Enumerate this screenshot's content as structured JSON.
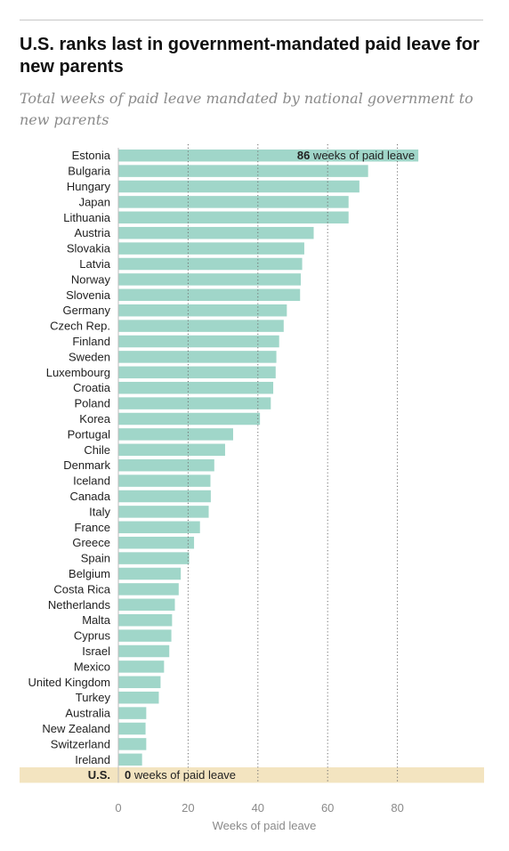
{
  "title": "U.S. ranks last in government-mandated paid leave for new parents",
  "subtitle": "Total weeks of paid leave mandated by national government to new parents",
  "chart_data": {
    "type": "bar",
    "orientation": "horizontal",
    "title": "U.S. ranks last in government-mandated paid leave for new parents",
    "subtitle": "Total weeks of paid leave mandated by national government to new parents",
    "xlabel": "Weeks of paid leave",
    "ylabel": "",
    "xlim": [
      0,
      104
    ],
    "xticks": [
      0,
      20,
      40,
      60,
      80
    ],
    "grid": true,
    "categories": [
      "Estonia",
      "Bulgaria",
      "Hungary",
      "Japan",
      "Lithuania",
      "Austria",
      "Slovakia",
      "Latvia",
      "Norway",
      "Slovenia",
      "Germany",
      "Czech Rep.",
      "Finland",
      "Sweden",
      "Luxembourg",
      "Croatia",
      "Poland",
      "Korea",
      "Portugal",
      "Chile",
      "Denmark",
      "Iceland",
      "Canada",
      "Italy",
      "France",
      "Greece",
      "Spain",
      "Belgium",
      "Costa Rica",
      "Netherlands",
      "Malta",
      "Cyprus",
      "Israel",
      "Mexico",
      "United Kingdom",
      "Turkey",
      "Australia",
      "New Zealand",
      "Switzerland",
      "Ireland",
      "U.S."
    ],
    "values": [
      86,
      71.6,
      69.1,
      66,
      66,
      56,
      53.3,
      52.7,
      52.3,
      52.1,
      48.3,
      47.4,
      46.1,
      45.3,
      45.1,
      44.4,
      43.7,
      40.6,
      32.9,
      30.6,
      27.5,
      26.4,
      26.5,
      25.9,
      23.4,
      21.7,
      20.3,
      17.9,
      17.3,
      16.2,
      15.4,
      15.2,
      14.6,
      13.1,
      12.1,
      11.6,
      8,
      7.8,
      8,
      6.8,
      0
    ],
    "highlight": "U.S.",
    "annotations": [
      {
        "category": "Estonia",
        "value_text": "86",
        "text": "weeks of paid leave"
      },
      {
        "category": "U.S.",
        "value_text": "0",
        "text": "weeks of paid leave"
      }
    ],
    "colors": {
      "bar": "#a0d6c9",
      "highlight_band": "#f3e4c0",
      "grid": "#6e6e6e",
      "axis": "#bdbdbd"
    }
  }
}
